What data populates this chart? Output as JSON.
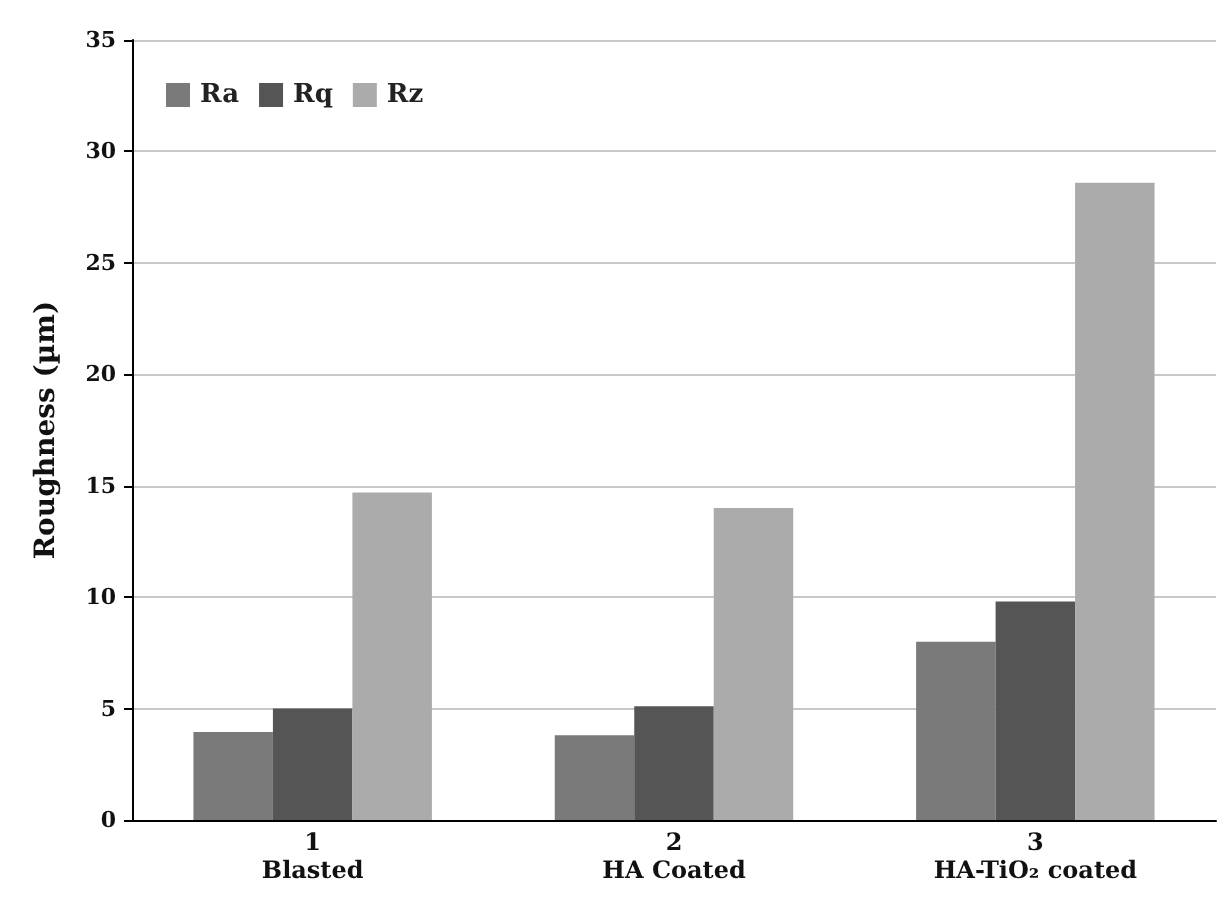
{
  "chart_data": {
    "type": "bar",
    "ylabel": "Roughness (µm)",
    "categories": [
      "1\nBlasted",
      "2\nHA Coated",
      "3\nHA-TiO₂ coated"
    ],
    "series": [
      {
        "name": "Ra",
        "color": "#7a7a7a",
        "values": [
          3.95,
          3.8,
          8.0
        ]
      },
      {
        "name": "Rq",
        "color": "#555555",
        "values": [
          5.0,
          5.1,
          9.8
        ]
      },
      {
        "name": "Rz",
        "color": "#ababab",
        "values": [
          14.7,
          14.0,
          28.6
        ]
      }
    ],
    "ylim": [
      0,
      35
    ],
    "yticks": [
      0,
      5,
      10,
      15,
      20,
      25,
      30,
      35
    ],
    "grid": "y",
    "legend": "top left"
  }
}
